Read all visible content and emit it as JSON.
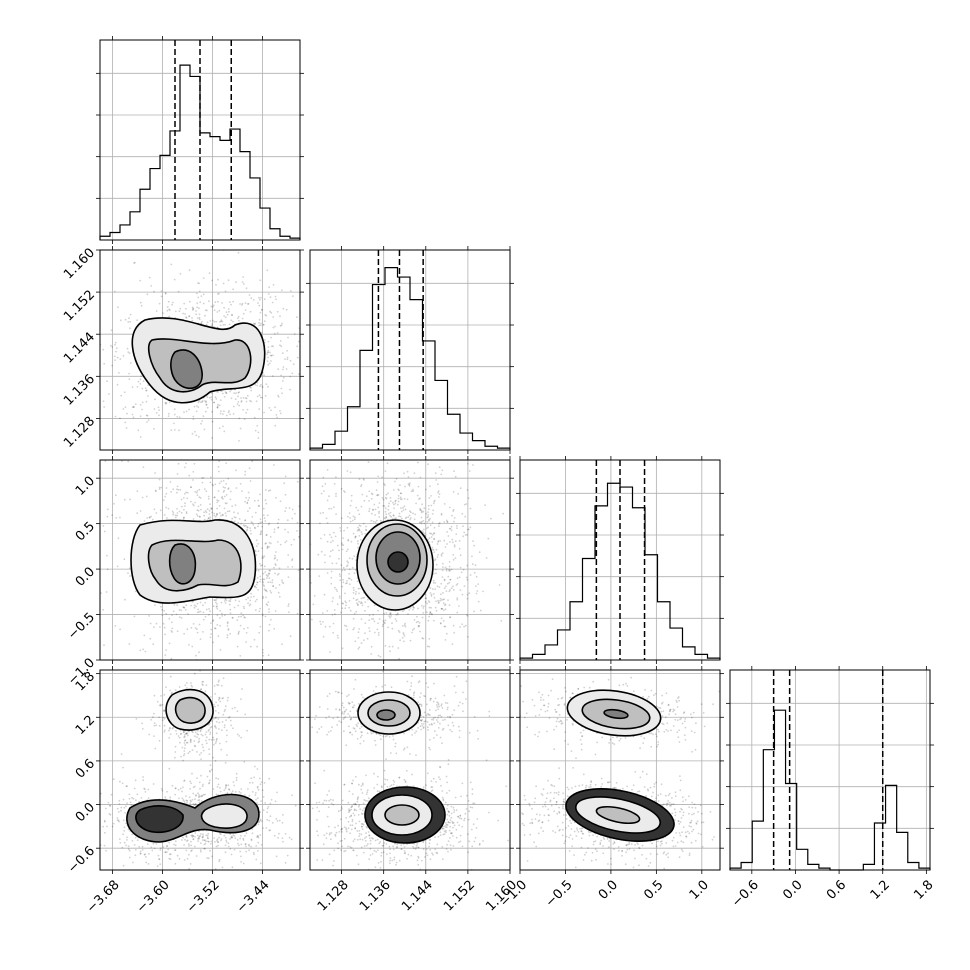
{
  "chart_data": {
    "type": "corner",
    "description_parameters": 4,
    "grid": true,
    "parameters": [
      {
        "range": [
          -3.7,
          -3.38
        ],
        "ticks": [
          -3.68,
          -3.6,
          -3.52,
          -3.44
        ],
        "tick_labels": [
          "−3.68",
          "−3.60",
          "−3.52",
          "−3.44"
        ],
        "quantiles": [
          -3.58,
          -3.54,
          -3.49
        ]
      },
      {
        "range": [
          1.122,
          1.16
        ],
        "ticks": [
          1.128,
          1.136,
          1.144,
          1.152,
          1.16
        ],
        "tick_labels": [
          "1.128",
          "1.136",
          "1.144",
          "1.152",
          "1.160"
        ],
        "quantiles": [
          1.135,
          1.139,
          1.1435
        ]
      },
      {
        "range": [
          -1.0,
          1.2
        ],
        "ticks": [
          -1.0,
          -0.5,
          0.0,
          0.5,
          1.0
        ],
        "tick_labels": [
          "−1.0",
          "−0.5",
          "0.0",
          "0.5",
          "1.0"
        ],
        "quantiles": [
          -0.16,
          0.1,
          0.37
        ]
      },
      {
        "range": [
          -0.9,
          1.85
        ],
        "ticks": [
          -0.6,
          0.0,
          0.6,
          1.2,
          1.8
        ],
        "tick_labels": [
          "−0.6",
          "0.0",
          "0.6",
          "1.2",
          "1.8"
        ],
        "quantiles": [
          -0.3,
          -0.08,
          1.2
        ]
      }
    ],
    "histograms": [
      [
        0.02,
        0.04,
        0.08,
        0.15,
        0.27,
        0.38,
        0.45,
        0.58,
        0.93,
        0.87,
        0.57,
        0.55,
        0.53,
        0.59,
        0.47,
        0.33,
        0.17,
        0.06,
        0.02,
        0.01
      ],
      [
        0.01,
        0.03,
        0.1,
        0.23,
        0.53,
        0.88,
        0.97,
        0.92,
        0.8,
        0.58,
        0.37,
        0.19,
        0.09,
        0.05,
        0.02,
        0.01
      ],
      [
        0.01,
        0.03,
        0.08,
        0.16,
        0.31,
        0.54,
        0.82,
        0.94,
        0.92,
        0.81,
        0.56,
        0.31,
        0.17,
        0.07,
        0.03,
        0.01
      ],
      [
        0.01,
        0.04,
        0.26,
        0.64,
        0.85,
        0.46,
        0.11,
        0.03,
        0.01,
        0.0,
        0.0,
        0.0,
        0.03,
        0.25,
        0.45,
        0.2,
        0.04,
        0.01
      ]
    ]
  }
}
